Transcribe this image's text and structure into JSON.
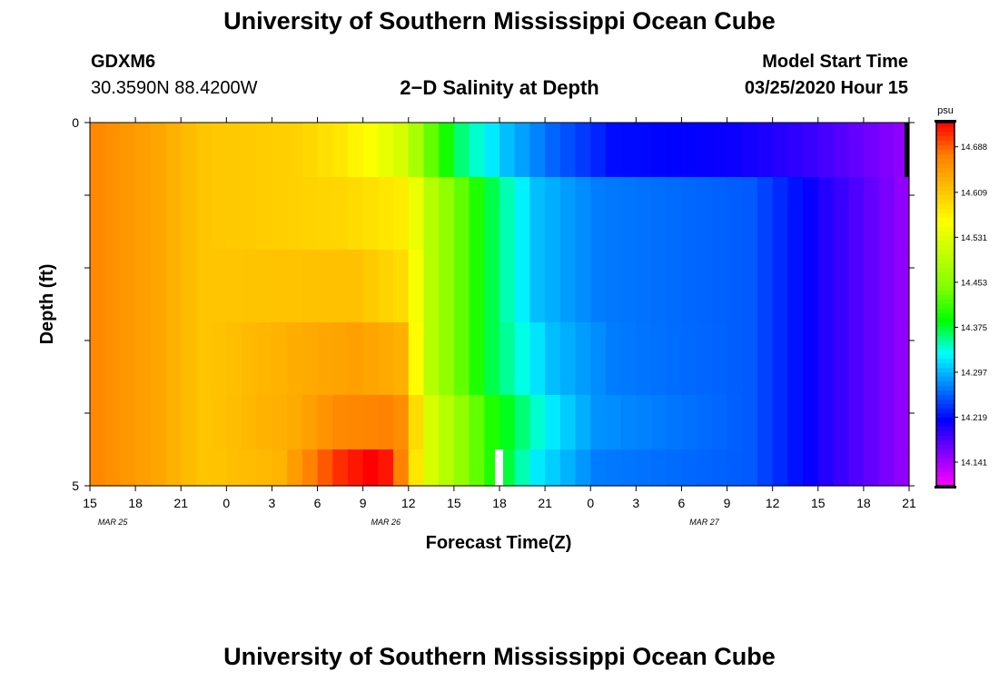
{
  "page": {
    "title_top": "University of Southern Mississippi Ocean Cube",
    "title_bottom": "University of Southern Mississippi Ocean Cube",
    "station_id": "GDXM6",
    "station_coords": "30.3590N 88.4200W",
    "plot_title": "2−D Salinity at Depth",
    "model_start_label": "Model Start Time",
    "model_start_value": "03/25/2020 Hour 15"
  },
  "chart_data": {
    "type": "heatmap",
    "title": "2−D Salinity at Depth",
    "xlabel": "Forecast Time(Z)",
    "ylabel": "Depth (ft)",
    "x_ticks": [
      "15",
      "18",
      "21",
      "0",
      "3",
      "6",
      "9",
      "12",
      "15",
      "18",
      "21",
      "0",
      "3",
      "6",
      "9",
      "12",
      "15",
      "18",
      "21"
    ],
    "date_labels": [
      {
        "text": "MAR 25",
        "tick_index": 1
      },
      {
        "text": "MAR 26",
        "tick_index": 7
      },
      {
        "text": "MAR 27",
        "tick_index": 14
      }
    ],
    "y_ticks": [
      "0",
      "5"
    ],
    "ylim": [
      0,
      5
    ],
    "n_steps": 54,
    "colorbar": {
      "unit": "psu",
      "min": 14.1,
      "max": 14.73,
      "ticks": [
        14.688,
        14.609,
        14.531,
        14.453,
        14.375,
        14.297,
        14.219,
        14.141
      ],
      "colors": [
        "#ff00ff",
        "#8000ff",
        "#0000ff",
        "#0080ff",
        "#00ffff",
        "#00ff00",
        "#80ff00",
        "#c0ff00",
        "#ffff00",
        "#ffc000",
        "#ff8000",
        "#ff0000"
      ]
    },
    "layer_depths_ft": [
      0.25,
      1.25,
      2.25,
      3.25,
      4.25,
      4.75
    ],
    "layers": [
      {
        "depth_ft": 0.25,
        "anchors": [
          [
            0,
            14.665
          ],
          [
            4,
            14.64
          ],
          [
            7,
            14.61
          ],
          [
            13,
            14.6
          ],
          [
            16,
            14.58
          ],
          [
            18,
            14.555
          ],
          [
            20,
            14.52
          ],
          [
            21,
            14.48
          ],
          [
            22,
            14.43
          ],
          [
            24,
            14.36
          ],
          [
            27,
            14.3
          ],
          [
            30,
            14.26
          ],
          [
            34,
            14.22
          ],
          [
            42,
            14.21
          ],
          [
            47,
            14.19
          ],
          [
            53,
            14.15
          ]
        ]
      },
      {
        "depth_ft": 1.25,
        "anchors": [
          [
            0,
            14.665
          ],
          [
            4,
            14.64
          ],
          [
            7,
            14.61
          ],
          [
            16,
            14.595
          ],
          [
            20,
            14.575
          ],
          [
            21,
            14.54
          ],
          [
            22,
            14.49
          ],
          [
            24,
            14.43
          ],
          [
            26,
            14.37
          ],
          [
            29,
            14.3
          ],
          [
            33,
            14.27
          ],
          [
            43,
            14.255
          ],
          [
            48,
            14.2
          ],
          [
            53,
            14.15
          ]
        ]
      },
      {
        "depth_ft": 2.25,
        "anchors": [
          [
            0,
            14.665
          ],
          [
            4,
            14.64
          ],
          [
            7,
            14.61
          ],
          [
            17,
            14.615
          ],
          [
            20,
            14.59
          ],
          [
            21,
            14.55
          ],
          [
            22,
            14.49
          ],
          [
            24,
            14.43
          ],
          [
            26,
            14.37
          ],
          [
            29,
            14.3
          ],
          [
            33,
            14.27
          ],
          [
            43,
            14.255
          ],
          [
            48,
            14.2
          ],
          [
            53,
            14.15
          ]
        ]
      },
      {
        "depth_ft": 3.25,
        "anchors": [
          [
            0,
            14.665
          ],
          [
            4,
            14.64
          ],
          [
            7,
            14.61
          ],
          [
            14,
            14.635
          ],
          [
            17,
            14.645
          ],
          [
            20,
            14.63
          ],
          [
            21,
            14.56
          ],
          [
            22,
            14.49
          ],
          [
            24,
            14.43
          ],
          [
            26,
            14.37
          ],
          [
            30,
            14.3
          ],
          [
            34,
            14.27
          ],
          [
            43,
            14.255
          ],
          [
            48,
            14.2
          ],
          [
            53,
            14.15
          ]
        ]
      },
      {
        "depth_ft": 4.25,
        "anchors": [
          [
            0,
            14.665
          ],
          [
            4,
            14.64
          ],
          [
            7,
            14.61
          ],
          [
            13,
            14.635
          ],
          [
            16,
            14.665
          ],
          [
            19,
            14.67
          ],
          [
            20,
            14.66
          ],
          [
            21,
            14.59
          ],
          [
            22,
            14.52
          ],
          [
            24,
            14.46
          ],
          [
            26,
            14.4
          ],
          [
            30,
            14.32
          ],
          [
            33,
            14.28
          ],
          [
            43,
            14.255
          ],
          [
            48,
            14.2
          ],
          [
            53,
            14.15
          ]
        ]
      },
      {
        "depth_ft": 4.75,
        "anchors": [
          [
            0,
            14.665
          ],
          [
            4,
            14.64
          ],
          [
            7,
            14.61
          ],
          [
            12,
            14.625
          ],
          [
            14,
            14.67
          ],
          [
            16,
            14.71
          ],
          [
            17,
            14.72
          ],
          [
            18,
            14.73
          ],
          [
            19,
            14.72
          ],
          [
            20,
            14.67
          ],
          [
            21,
            14.58
          ],
          [
            22,
            14.52
          ],
          [
            24,
            14.46
          ],
          [
            26,
            14.4
          ],
          [
            29,
            14.32
          ],
          [
            33,
            14.27
          ],
          [
            43,
            14.255
          ],
          [
            48,
            14.2
          ],
          [
            53,
            14.15
          ]
        ]
      }
    ],
    "grid": false,
    "legend": "colorbar-right"
  }
}
